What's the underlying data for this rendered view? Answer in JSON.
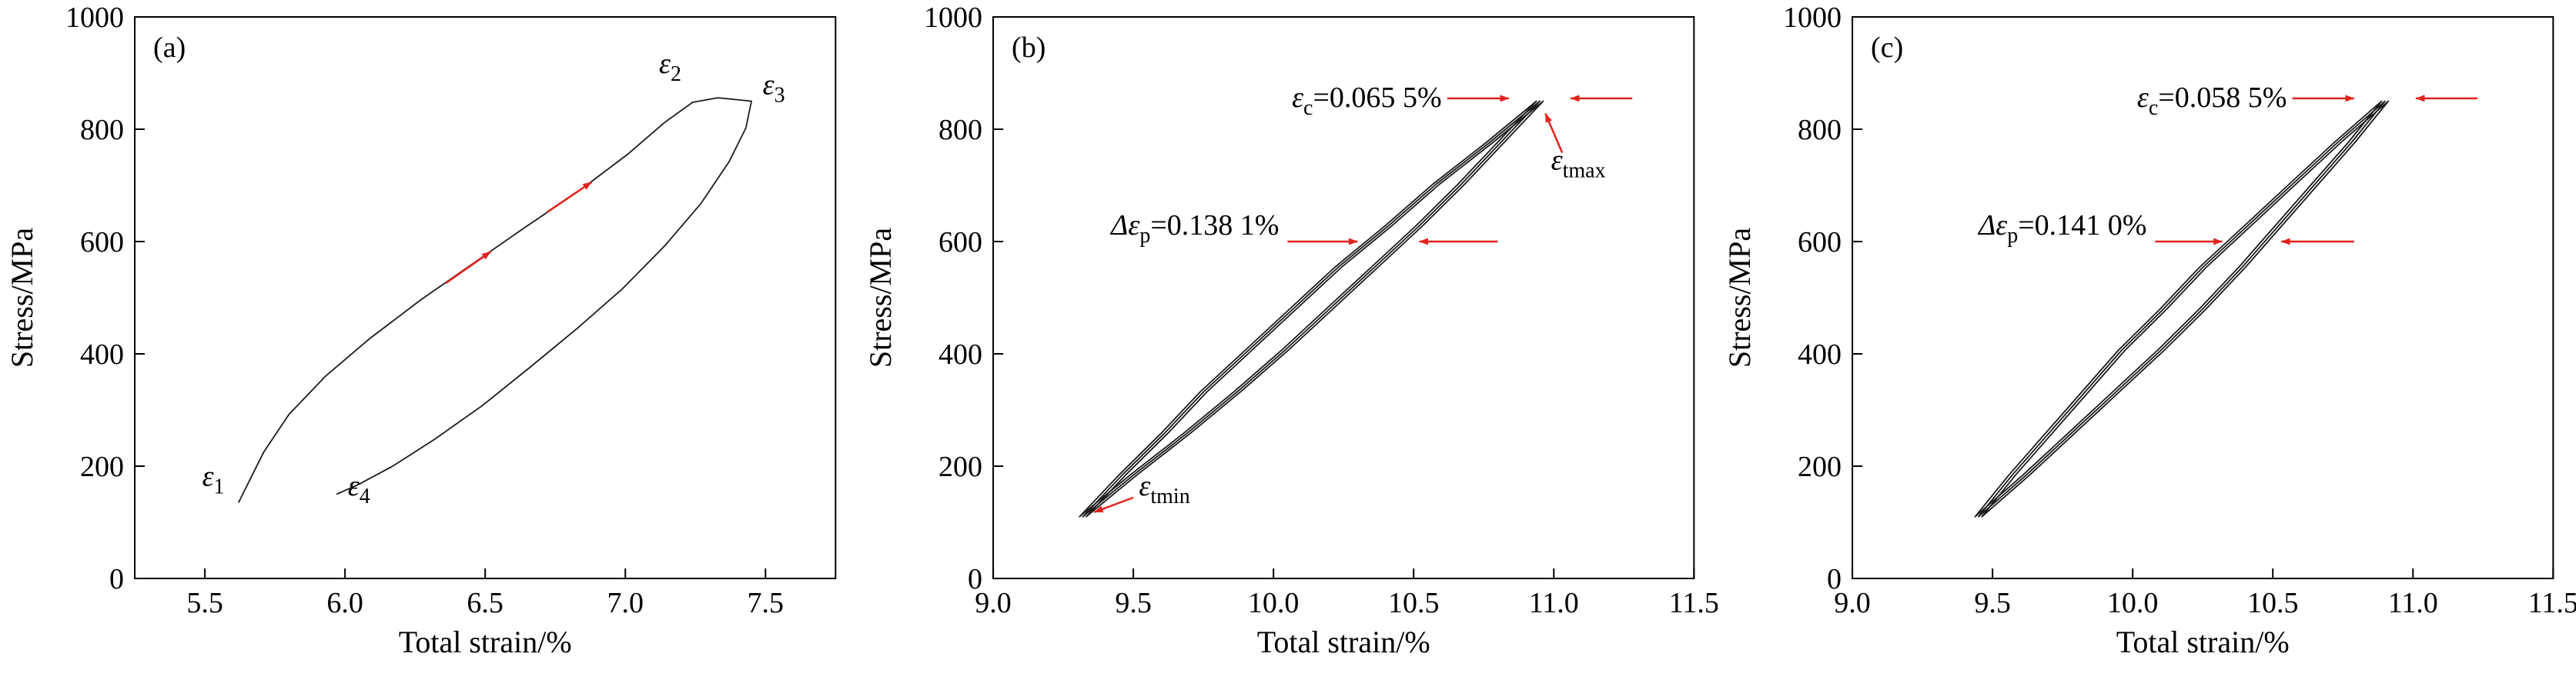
{
  "figure": {
    "background": "#ffffff",
    "curve_color": "#1c1c1c",
    "axis_color": "#000000",
    "accent_red": "#e2231c"
  },
  "chart_data": [
    {
      "type": "line",
      "panel_label": "(a)",
      "xlabel": "Total strain/%",
      "ylabel": "Stress/MPa",
      "xlim": [
        5.25,
        7.75
      ],
      "ylim": [
        0,
        1000
      ],
      "xticks": [
        5.5,
        6.0,
        6.5,
        7.0,
        7.5
      ],
      "xtick_labels": [
        "5.5",
        "6.0",
        "6.5",
        "7.0",
        "7.5"
      ],
      "yticks": [
        0,
        200,
        400,
        600,
        800,
        1000
      ],
      "ytick_labels": [
        "0",
        "200",
        "400",
        "600",
        "800",
        "1000"
      ],
      "series": [
        {
          "name": "hysteresis-loop",
          "closed": false,
          "repeat_offsets": [
            0
          ],
          "points": [
            [
              5.62,
              135
            ],
            [
              5.66,
              175
            ],
            [
              5.71,
              225
            ],
            [
              5.8,
              292
            ],
            [
              5.93,
              360
            ],
            [
              6.09,
              428
            ],
            [
              6.27,
              496
            ],
            [
              6.46,
              562
            ],
            [
              6.65,
              628
            ],
            [
              6.84,
              692
            ],
            [
              7.01,
              756
            ],
            [
              7.14,
              812
            ],
            [
              7.24,
              848
            ],
            [
              7.33,
              856
            ],
            [
              7.45,
              850
            ],
            [
              7.43,
              802
            ],
            [
              7.37,
              742
            ],
            [
              7.27,
              668
            ],
            [
              7.14,
              592
            ],
            [
              6.99,
              516
            ],
            [
              6.83,
              446
            ],
            [
              6.66,
              376
            ],
            [
              6.49,
              308
            ],
            [
              6.32,
              248
            ],
            [
              6.17,
              200
            ],
            [
              6.05,
              168
            ],
            [
              5.97,
              150
            ]
          ]
        }
      ],
      "point_labels": [
        {
          "base": "ε",
          "sub": "1",
          "rest": "",
          "x": 5.57,
          "y": 165,
          "anchor": "end"
        },
        {
          "base": "ε",
          "sub": "2",
          "rest": "",
          "x": 7.16,
          "y": 900,
          "anchor": "middle"
        },
        {
          "base": "ε",
          "sub": "3",
          "rest": "",
          "x": 7.49,
          "y": 862,
          "anchor": "start"
        },
        {
          "base": "ε",
          "sub": "4",
          "rest": "",
          "x": 6.01,
          "y": 148,
          "anchor": "start"
        }
      ],
      "arrows": [
        {
          "x1": 6.36,
          "y1": 526,
          "x2": 6.52,
          "y2": 582
        },
        {
          "x1": 6.72,
          "y1": 652,
          "x2": 6.88,
          "y2": 706
        }
      ]
    },
    {
      "type": "line",
      "panel_label": "(b)",
      "xlabel": "Total strain/%",
      "ylabel": "Stress/MPa",
      "xlim": [
        9.0,
        11.5
      ],
      "ylim": [
        0,
        1000
      ],
      "xticks": [
        9.0,
        9.5,
        10.0,
        10.5,
        11.0,
        11.5
      ],
      "xtick_labels": [
        "9.0",
        "9.5",
        "10.0",
        "10.5",
        "11.0",
        "11.5"
      ],
      "yticks": [
        0,
        200,
        400,
        600,
        800,
        1000
      ],
      "yticks_note": "stress ticks every 200 MPa",
      "ytick_labels": [
        "0",
        "200",
        "400",
        "600",
        "800",
        "1000"
      ],
      "series": [
        {
          "name": "hysteresis-loop-cycles",
          "closed": true,
          "repeat_offsets": [
            0,
            0.012,
            -0.012
          ],
          "points": [
            [
              9.32,
              110
            ],
            [
              9.46,
              184
            ],
            [
              9.61,
              258
            ],
            [
              9.75,
              332
            ],
            [
              9.91,
              406
            ],
            [
              10.07,
              480
            ],
            [
              10.23,
              554
            ],
            [
              10.41,
              628
            ],
            [
              10.58,
              702
            ],
            [
              10.77,
              776
            ],
            [
              10.95,
              850
            ],
            [
              10.81,
              776
            ],
            [
              10.67,
              702
            ],
            [
              10.52,
              628
            ],
            [
              10.36,
              554
            ],
            [
              10.2,
              480
            ],
            [
              10.04,
              406
            ],
            [
              9.87,
              332
            ],
            [
              9.69,
              258
            ],
            [
              9.5,
              184
            ]
          ]
        }
      ],
      "point_labels": [
        {
          "base": "ε",
          "sub": "c",
          "rest": "=0.065 5%",
          "x": 10.6,
          "y": 840,
          "anchor": "end"
        },
        {
          "base": "ε",
          "sub": "tmax",
          "rest": "",
          "x": 10.99,
          "y": 728,
          "anchor": "start"
        },
        {
          "base": "Δε",
          "sub": "p",
          "rest": "=0.138 1%",
          "x": 10.02,
          "y": 612,
          "anchor": "end"
        },
        {
          "base": "ε",
          "sub": "tmin",
          "rest": "",
          "x": 9.52,
          "y": 148,
          "anchor": "start"
        }
      ],
      "arrows": [
        {
          "x1": 10.62,
          "y1": 855,
          "x2": 10.84,
          "y2": 855
        },
        {
          "x1": 11.28,
          "y1": 855,
          "x2": 11.06,
          "y2": 855
        },
        {
          "x1": 11.03,
          "y1": 758,
          "x2": 10.97,
          "y2": 828
        },
        {
          "x1": 10.05,
          "y1": 600,
          "x2": 10.3,
          "y2": 600
        },
        {
          "x1": 10.8,
          "y1": 600,
          "x2": 10.52,
          "y2": 600
        },
        {
          "x1": 9.5,
          "y1": 144,
          "x2": 9.36,
          "y2": 118
        }
      ]
    },
    {
      "type": "line",
      "panel_label": "(c)",
      "xlabel": "Total strain/%",
      "ylabel": "Stress/MPa",
      "xlim": [
        9.0,
        11.5
      ],
      "ylim": [
        0,
        1000
      ],
      "xticks": [
        9.0,
        9.5,
        10.0,
        10.5,
        11.0,
        11.5
      ],
      "xtick_labels": [
        "9.0",
        "9.5",
        "10.0",
        "10.5",
        "11.0",
        "11.5"
      ],
      "yticks": [
        0,
        200,
        400,
        600,
        800,
        1000
      ],
      "ytick_labels": [
        "0",
        "200",
        "400",
        "600",
        "800",
        "1000"
      ],
      "series": [
        {
          "name": "hysteresis-loop-cycles",
          "closed": true,
          "repeat_offsets": [
            0,
            0.012,
            -0.012
          ],
          "points": [
            [
              9.45,
              110
            ],
            [
              9.57,
              184
            ],
            [
              9.7,
              258
            ],
            [
              9.83,
              332
            ],
            [
              9.96,
              406
            ],
            [
              10.11,
              480
            ],
            [
              10.25,
              554
            ],
            [
              10.41,
              628
            ],
            [
              10.57,
              702
            ],
            [
              10.73,
              776
            ],
            [
              10.9,
              850
            ],
            [
              10.78,
              776
            ],
            [
              10.65,
              702
            ],
            [
              10.52,
              628
            ],
            [
              10.39,
              554
            ],
            [
              10.25,
              480
            ],
            [
              10.1,
              406
            ],
            [
              9.94,
              332
            ],
            [
              9.78,
              258
            ],
            [
              9.62,
              184
            ]
          ]
        }
      ],
      "point_labels": [
        {
          "base": "ε",
          "sub": "c",
          "rest": "=0.058 5%",
          "x": 10.55,
          "y": 840,
          "anchor": "end"
        },
        {
          "base": "Δε",
          "sub": "p",
          "rest": "=0.141 0%",
          "x": 10.05,
          "y": 612,
          "anchor": "end"
        }
      ],
      "arrows": [
        {
          "x1": 10.57,
          "y1": 855,
          "x2": 10.79,
          "y2": 855
        },
        {
          "x1": 11.23,
          "y1": 855,
          "x2": 11.01,
          "y2": 855
        },
        {
          "x1": 10.08,
          "y1": 600,
          "x2": 10.32,
          "y2": 600
        },
        {
          "x1": 10.79,
          "y1": 600,
          "x2": 10.53,
          "y2": 600
        }
      ]
    }
  ]
}
